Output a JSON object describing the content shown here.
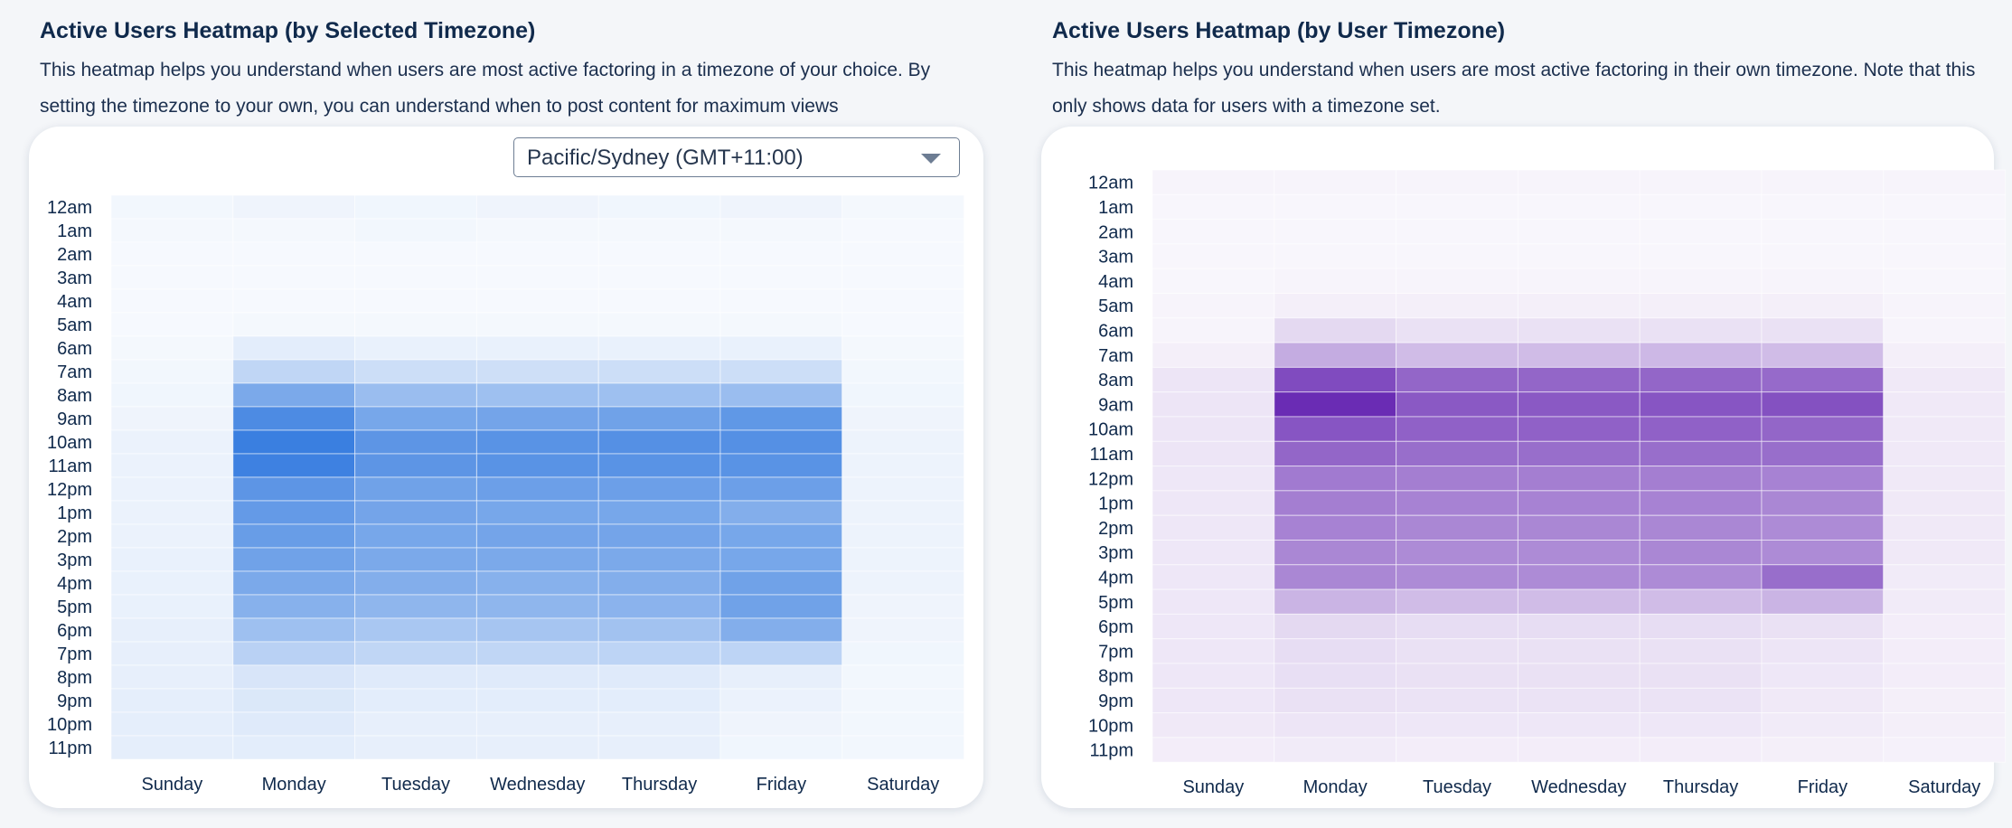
{
  "left": {
    "title": "Active Users Heatmap (by Selected Timezone)",
    "description": "This heatmap helps you understand when users are most active factoring in a timezone of your choice. By setting the timezone to your own, you can understand when to post content for maximum views",
    "timezone_select": {
      "value": "Pacific/Sydney (GMT+11:00)"
    }
  },
  "right": {
    "title": "Active Users Heatmap (by User Timezone)",
    "description": "This heatmap helps you understand when users are most active factoring in their own timezone.  Note that this only shows data for users with a timezone set."
  },
  "chart_data": [
    {
      "type": "heatmap",
      "title": "Active Users Heatmap (by Selected Timezone)",
      "color": "#3a7fe0",
      "x": [
        "Sunday",
        "Monday",
        "Tuesday",
        "Wednesday",
        "Thursday",
        "Friday",
        "Saturday"
      ],
      "y": [
        "12am",
        "1am",
        "2am",
        "3am",
        "4am",
        "5am",
        "6am",
        "7am",
        "8am",
        "9am",
        "10am",
        "11am",
        "12pm",
        "1pm",
        "2pm",
        "3pm",
        "4pm",
        "5pm",
        "6pm",
        "7pm",
        "8pm",
        "9pm",
        "10pm",
        "11pm"
      ],
      "values": [
        [
          0.04,
          0.06,
          0.05,
          0.06,
          0.05,
          0.06,
          0.03
        ],
        [
          0.03,
          0.03,
          0.04,
          0.03,
          0.03,
          0.03,
          0.02
        ],
        [
          0.02,
          0.02,
          0.02,
          0.02,
          0.02,
          0.02,
          0.02
        ],
        [
          0.02,
          0.02,
          0.02,
          0.02,
          0.02,
          0.02,
          0.02
        ],
        [
          0.02,
          0.02,
          0.02,
          0.02,
          0.02,
          0.02,
          0.02
        ],
        [
          0.02,
          0.03,
          0.03,
          0.03,
          0.03,
          0.03,
          0.02
        ],
        [
          0.03,
          0.12,
          0.09,
          0.09,
          0.09,
          0.09,
          0.03
        ],
        [
          0.04,
          0.3,
          0.24,
          0.23,
          0.24,
          0.24,
          0.04
        ],
        [
          0.05,
          0.66,
          0.5,
          0.48,
          0.48,
          0.5,
          0.05
        ],
        [
          0.06,
          0.9,
          0.68,
          0.7,
          0.72,
          0.8,
          0.06
        ],
        [
          0.08,
          1.0,
          0.82,
          0.84,
          0.86,
          0.86,
          0.07
        ],
        [
          0.08,
          0.98,
          0.82,
          0.84,
          0.84,
          0.84,
          0.07
        ],
        [
          0.08,
          0.82,
          0.72,
          0.74,
          0.74,
          0.74,
          0.07
        ],
        [
          0.08,
          0.78,
          0.7,
          0.68,
          0.68,
          0.62,
          0.07
        ],
        [
          0.08,
          0.76,
          0.68,
          0.7,
          0.7,
          0.68,
          0.07
        ],
        [
          0.09,
          0.72,
          0.66,
          0.66,
          0.66,
          0.68,
          0.07
        ],
        [
          0.09,
          0.66,
          0.62,
          0.6,
          0.62,
          0.72,
          0.07
        ],
        [
          0.09,
          0.6,
          0.56,
          0.56,
          0.58,
          0.72,
          0.06
        ],
        [
          0.1,
          0.48,
          0.42,
          0.44,
          0.46,
          0.62,
          0.06
        ],
        [
          0.1,
          0.34,
          0.3,
          0.3,
          0.32,
          0.32,
          0.05
        ],
        [
          0.1,
          0.18,
          0.14,
          0.14,
          0.14,
          0.1,
          0.04
        ],
        [
          0.11,
          0.16,
          0.12,
          0.12,
          0.12,
          0.08,
          0.04
        ],
        [
          0.11,
          0.14,
          0.1,
          0.1,
          0.1,
          0.06,
          0.04
        ],
        [
          0.11,
          0.12,
          0.1,
          0.1,
          0.1,
          0.05,
          0.04
        ]
      ]
    },
    {
      "type": "heatmap",
      "title": "Active Users Heatmap (by User Timezone)",
      "color": "#6a2cb4",
      "x": [
        "Sunday",
        "Monday",
        "Tuesday",
        "Wednesday",
        "Thursday",
        "Friday",
        "Saturday"
      ],
      "y": [
        "12am",
        "1am",
        "2am",
        "3am",
        "4am",
        "5am",
        "6am",
        "7am",
        "8am",
        "9am",
        "10am",
        "11am",
        "12pm",
        "1pm",
        "2pm",
        "3pm",
        "4pm",
        "5pm",
        "6pm",
        "7pm",
        "8pm",
        "9pm",
        "10pm",
        "11pm"
      ],
      "values": [
        [
          0.03,
          0.03,
          0.03,
          0.03,
          0.03,
          0.03,
          0.03
        ],
        [
          0.02,
          0.02,
          0.02,
          0.02,
          0.02,
          0.02,
          0.02
        ],
        [
          0.02,
          0.02,
          0.02,
          0.02,
          0.02,
          0.02,
          0.02
        ],
        [
          0.02,
          0.02,
          0.02,
          0.02,
          0.02,
          0.02,
          0.02
        ],
        [
          0.02,
          0.03,
          0.03,
          0.03,
          0.03,
          0.03,
          0.02
        ],
        [
          0.03,
          0.05,
          0.05,
          0.05,
          0.05,
          0.05,
          0.03
        ],
        [
          0.03,
          0.16,
          0.12,
          0.12,
          0.12,
          0.12,
          0.03
        ],
        [
          0.05,
          0.38,
          0.3,
          0.3,
          0.32,
          0.3,
          0.05
        ],
        [
          0.1,
          0.85,
          0.72,
          0.72,
          0.72,
          0.7,
          0.08
        ],
        [
          0.1,
          1.0,
          0.78,
          0.78,
          0.8,
          0.82,
          0.08
        ],
        [
          0.1,
          0.8,
          0.74,
          0.74,
          0.74,
          0.72,
          0.08
        ],
        [
          0.1,
          0.72,
          0.68,
          0.68,
          0.68,
          0.68,
          0.08
        ],
        [
          0.09,
          0.62,
          0.6,
          0.6,
          0.6,
          0.58,
          0.08
        ],
        [
          0.09,
          0.6,
          0.58,
          0.58,
          0.58,
          0.56,
          0.08
        ],
        [
          0.09,
          0.58,
          0.56,
          0.56,
          0.56,
          0.54,
          0.08
        ],
        [
          0.09,
          0.56,
          0.54,
          0.54,
          0.56,
          0.54,
          0.08
        ],
        [
          0.09,
          0.56,
          0.54,
          0.54,
          0.54,
          0.68,
          0.07
        ],
        [
          0.09,
          0.34,
          0.3,
          0.3,
          0.3,
          0.34,
          0.07
        ],
        [
          0.09,
          0.16,
          0.14,
          0.14,
          0.14,
          0.12,
          0.06
        ],
        [
          0.09,
          0.14,
          0.12,
          0.12,
          0.12,
          0.1,
          0.06
        ],
        [
          0.09,
          0.13,
          0.12,
          0.12,
          0.12,
          0.09,
          0.06
        ],
        [
          0.09,
          0.12,
          0.11,
          0.11,
          0.11,
          0.08,
          0.05
        ],
        [
          0.08,
          0.1,
          0.09,
          0.09,
          0.09,
          0.07,
          0.05
        ],
        [
          0.06,
          0.07,
          0.06,
          0.06,
          0.06,
          0.05,
          0.04
        ]
      ]
    }
  ]
}
